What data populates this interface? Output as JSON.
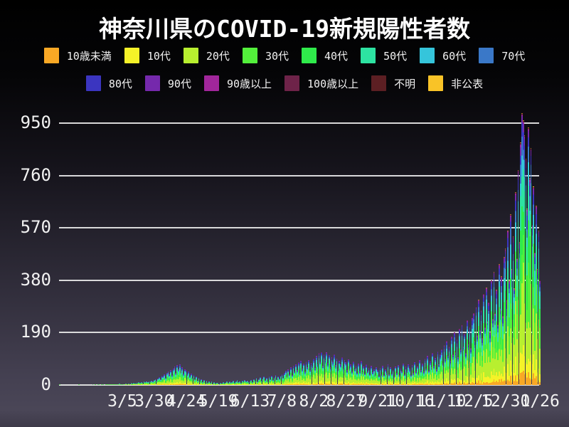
{
  "chart_data": {
    "type": "bar",
    "subtype": "stacked-daily",
    "title": "神奈川県のCOVID-19新規陽性者数",
    "ylabel": "",
    "xlabel": "",
    "ylim": [
      0,
      1010
    ],
    "grid": true,
    "legend_position": "top",
    "y_ticks": [
      0,
      190,
      380,
      570,
      760,
      950
    ],
    "x_ticks": [
      {
        "label": "3/5",
        "day": 49
      },
      {
        "label": "3/30",
        "day": 74
      },
      {
        "label": "4/24",
        "day": 99
      },
      {
        "label": "5/19",
        "day": 124
      },
      {
        "label": "6/13",
        "day": 149
      },
      {
        "label": "7/8",
        "day": 174
      },
      {
        "label": "8/2",
        "day": 199
      },
      {
        "label": "8/27",
        "day": 224
      },
      {
        "label": "9/21",
        "day": 249
      },
      {
        "label": "10/16",
        "day": 274
      },
      {
        "label": "11/10",
        "day": 299
      },
      {
        "label": "12/5",
        "day": 324
      },
      {
        "label": "12/30",
        "day": 349
      },
      {
        "label": "1/26",
        "day": 376
      }
    ],
    "series": [
      {
        "name": "10歳未満",
        "color": "#F9A825",
        "share": 0.04
      },
      {
        "name": "10代",
        "color": "#F5F228",
        "share": 0.08
      },
      {
        "name": "20代",
        "color": "#B8EF2F",
        "share": 0.24
      },
      {
        "name": "30代",
        "color": "#53F03B",
        "share": 0.16
      },
      {
        "name": "40代",
        "color": "#2FEB4B",
        "share": 0.14
      },
      {
        "name": "50代",
        "color": "#2DE3A2",
        "share": 0.12
      },
      {
        "name": "60代",
        "color": "#35C5DB",
        "share": 0.07
      },
      {
        "name": "70代",
        "color": "#3A78C8",
        "share": 0.06
      },
      {
        "name": "80代",
        "color": "#3B35C0",
        "share": 0.05
      },
      {
        "name": "90代",
        "color": "#7529AC",
        "share": 0.025
      },
      {
        "name": "90歳以上",
        "color": "#A1269B",
        "share": 0.008
      },
      {
        "name": "100歳以上",
        "color": "#6E2349",
        "share": 0.003
      },
      {
        "name": "不明",
        "color": "#5C1F23",
        "share": 0.002
      },
      {
        "name": "非公表",
        "color": "#F9C327",
        "share": 0.002
      }
    ],
    "daily_totals": [
      1,
      0,
      0,
      0,
      0,
      0,
      0,
      0,
      0,
      0,
      0,
      0,
      0,
      0,
      0,
      1,
      0,
      0,
      0,
      0,
      0,
      0,
      0,
      0,
      0,
      0,
      1,
      0,
      1,
      0,
      2,
      1,
      0,
      1,
      2,
      0,
      1,
      3,
      2,
      1,
      2,
      3,
      1,
      2,
      4,
      3,
      2,
      5,
      3,
      2,
      4,
      3,
      5,
      3,
      6,
      4,
      7,
      5,
      8,
      6,
      9,
      7,
      10,
      8,
      11,
      9,
      12,
      10,
      13,
      11,
      14,
      12,
      15,
      13,
      17,
      20,
      16,
      24,
      28,
      22,
      34,
      30,
      38,
      26,
      44,
      48,
      40,
      55,
      35,
      60,
      68,
      45,
      72,
      58,
      75,
      50,
      65,
      42,
      58,
      55,
      38,
      48,
      30,
      42,
      25,
      35,
      20,
      30,
      16,
      26,
      13,
      22,
      11,
      18,
      9,
      15,
      8,
      13,
      7,
      12,
      6,
      10,
      5,
      9,
      7,
      4,
      9,
      5,
      11,
      6,
      8,
      12,
      7,
      14,
      8,
      10,
      16,
      9,
      12,
      18,
      10,
      14,
      8,
      16,
      11,
      18,
      12,
      15,
      10,
      13,
      19,
      11,
      22,
      15,
      25,
      13,
      20,
      28,
      16,
      24,
      31,
      18,
      27,
      14,
      30,
      21,
      33,
      17,
      28,
      35,
      20,
      31,
      24,
      34,
      38,
      25,
      45,
      52,
      30,
      58,
      40,
      64,
      35,
      70,
      48,
      76,
      55,
      82,
      45,
      88,
      60,
      78,
      50,
      85,
      65,
      90,
      55,
      80,
      70,
      95,
      62,
      105,
      75,
      115,
      85,
      120,
      70,
      110,
      90,
      118,
      80,
      108,
      65,
      100,
      85,
      112,
      72,
      95,
      60,
      88,
      76,
      102,
      68,
      90,
      82,
      55,
      92,
      60,
      75,
      48,
      85,
      58,
      70,
      45,
      78,
      52,
      88,
      47,
      66,
      42,
      74,
      50,
      62,
      38,
      70,
      46,
      58,
      35,
      64,
      54,
      33,
      62,
      40,
      70,
      36,
      58,
      45,
      76,
      38,
      64,
      42,
      55,
      30,
      68,
      44,
      72,
      35,
      60,
      48,
      78,
      40,
      66,
      52,
      74,
      60,
      36,
      72,
      45,
      84,
      50,
      66,
      42,
      90,
      55,
      78,
      48,
      96,
      60,
      105,
      52,
      88,
      65,
      115,
      70,
      98,
      58,
      122,
      75,
      110,
      130,
      80,
      145,
      95,
      160,
      105,
      140,
      88,
      175,
      110,
      190,
      120,
      165,
      100,
      205,
      130,
      220,
      140,
      185,
      115,
      235,
      150,
      210,
      135,
      245,
      260,
      160,
      285,
      180,
      310,
      200,
      270,
      170,
      330,
      210,
      355,
      230,
      300,
      190,
      380,
      240,
      410,
      260,
      345,
      220,
      440,
      280,
      395,
      250,
      465,
      495,
      310,
      560,
      380,
      620,
      420,
      540,
      350,
      700,
      460,
      780,
      520,
      880,
      985,
      960,
      905,
      820,
      640,
      935,
      750,
      860,
      580,
      720,
      480,
      650,
      420,
      560,
      380
    ]
  }
}
